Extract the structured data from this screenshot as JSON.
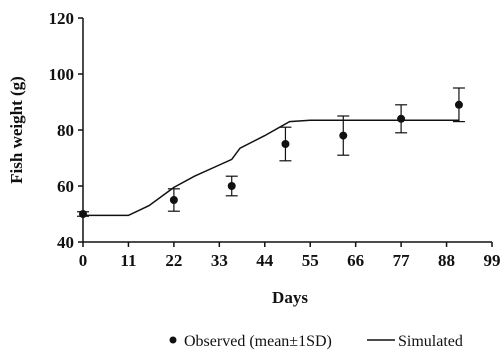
{
  "chart_data": {
    "type": "scatter",
    "title": "",
    "xlabel": "Days",
    "ylabel": "Fish weight (g)",
    "xlim": [
      0,
      99
    ],
    "ylim": [
      40,
      120
    ],
    "x_ticks": [
      0,
      11,
      22,
      33,
      44,
      55,
      66,
      77,
      88,
      99
    ],
    "y_ticks": [
      40,
      60,
      80,
      100,
      120
    ],
    "grid": false,
    "legend_position": "bottom",
    "series": [
      {
        "name": "Observed (mean±1SD)",
        "kind": "points_with_error_bars",
        "color": "#111111",
        "points": [
          {
            "x": 0,
            "y": 50,
            "sd": 0.8
          },
          {
            "x": 22,
            "y": 55,
            "sd": 4
          },
          {
            "x": 36,
            "y": 60,
            "sd": 3.5
          },
          {
            "x": 49,
            "y": 75,
            "sd": 6
          },
          {
            "x": 63,
            "y": 78,
            "sd": 7
          },
          {
            "x": 77,
            "y": 84,
            "sd": 5
          },
          {
            "x": 91,
            "y": 89,
            "sd": 6
          }
        ]
      },
      {
        "name": "Simulated",
        "kind": "line",
        "color": "#111111",
        "x": [
          0,
          11,
          16,
          22,
          27,
          33,
          36,
          38,
          44,
          50,
          55,
          63,
          70,
          77,
          84,
          91
        ],
        "y": [
          49.5,
          49.5,
          53,
          59.5,
          63.5,
          67.5,
          69.5,
          73.5,
          78,
          83,
          83.5,
          83.5,
          83.5,
          83.5,
          83.5,
          83.5
        ]
      }
    ]
  }
}
